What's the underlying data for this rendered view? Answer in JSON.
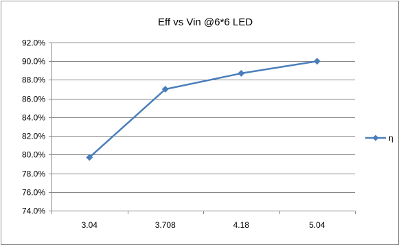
{
  "chart_data": {
    "type": "line",
    "title": "Eff  vs Vin @6*6 LED",
    "xlabel": "",
    "ylabel": "",
    "categories": [
      "3.04",
      "3.708",
      "4.18",
      "5.04"
    ],
    "series": [
      {
        "name": "η",
        "values": [
          0.797,
          0.87,
          0.887,
          0.9
        ],
        "color": "#4a7ebb"
      }
    ],
    "ylim": [
      0.74,
      0.92
    ],
    "yticks": [
      0.74,
      0.76,
      0.78,
      0.8,
      0.82,
      0.84,
      0.86,
      0.88,
      0.9,
      0.92
    ],
    "ytick_labels": [
      "74.0%",
      "76.0%",
      "78.0%",
      "80.0%",
      "82.0%",
      "84.0%",
      "86.0%",
      "88.0%",
      "90.0%",
      "92.0%"
    ],
    "grid": true,
    "legend_position": "right",
    "marker": "diamond",
    "colors": {
      "line": "#4a7ebb",
      "grid": "#868686",
      "axis": "#868686",
      "frame": "#8c8c8c"
    }
  }
}
